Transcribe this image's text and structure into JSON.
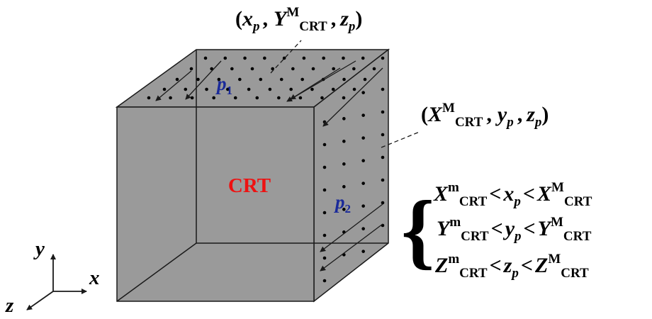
{
  "diagram": {
    "center_label": "CRT",
    "point_labels": {
      "p1": {
        "base": "p",
        "sub": "1"
      },
      "p2": {
        "base": "p",
        "sub": "2"
      }
    },
    "annotations": {
      "top_face_point": {
        "open": "(",
        "x": "x",
        "x_sub": "p",
        "Y": "Y",
        "Y_sup": "M",
        "Y_sub": "CRT",
        "z": "z",
        "z_sub": "p",
        "close": ")",
        "comma": ","
      },
      "side_face_point": {
        "open": "(",
        "X": "X",
        "X_sup": "M",
        "X_sub": "CRT",
        "y": "y",
        "y_sub": "p",
        "z": "z",
        "z_sub": "p",
        "close": ")",
        "comma": ","
      }
    },
    "constraints": [
      {
        "lhs": "X",
        "lhs_sup": "m",
        "lhs_sub": "CRT",
        "lt": "<",
        "mid": "x",
        "mid_sub": "p",
        "rhs": "X",
        "rhs_sup": "M",
        "rhs_sub": "CRT"
      },
      {
        "lhs": "Y",
        "lhs_sup": "m",
        "lhs_sub": "CRT",
        "lt": "<",
        "mid": "y",
        "mid_sub": "p",
        "rhs": "Y",
        "rhs_sup": "M",
        "rhs_sub": "CRT"
      },
      {
        "lhs": "Z",
        "lhs_sup": "m",
        "lhs_sub": "CRT",
        "lt": "<",
        "mid": "z",
        "mid_sub": "p",
        "rhs": "Z",
        "rhs_sup": "M",
        "rhs_sub": "CRT"
      }
    ],
    "brace": "{",
    "axes": {
      "x": "x",
      "y": "y",
      "z": "z"
    },
    "colors": {
      "face": "#9a9a9a",
      "edge": "#1a1a1a",
      "label_red": "#ee1111",
      "label_blue": "#1a2a9a",
      "text": "#000000"
    }
  }
}
